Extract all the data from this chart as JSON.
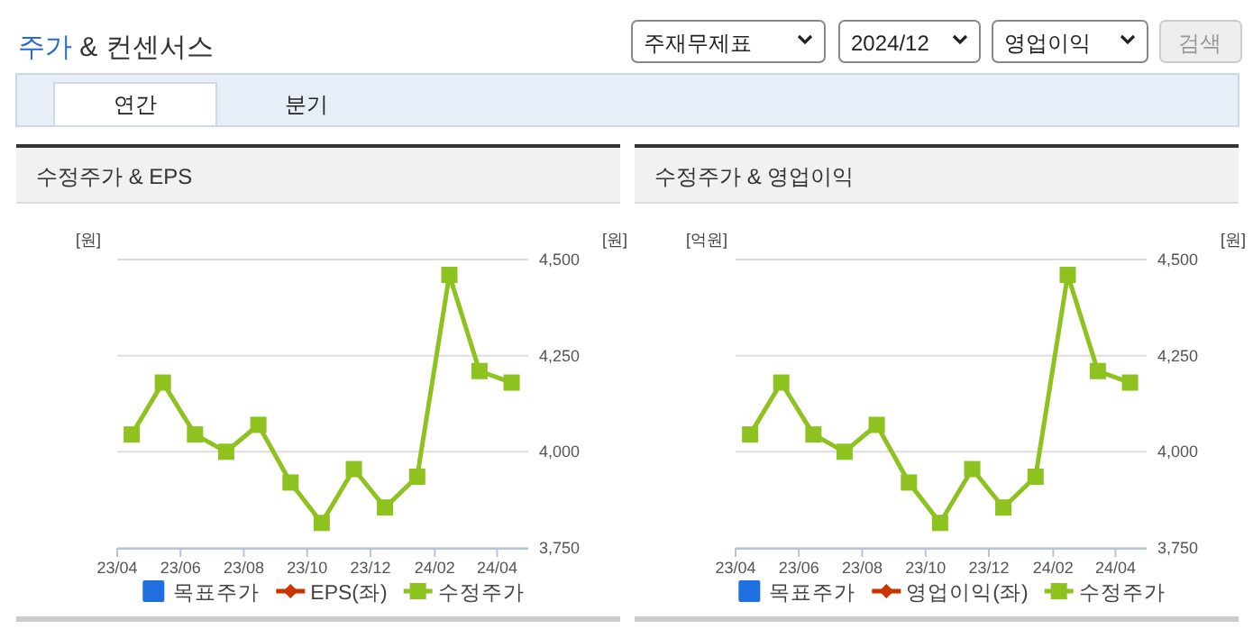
{
  "chart_data": [
    {
      "type": "other",
      "title": "주가 & 컨센서스",
      "annotations": [
        "주재무제표",
        "2024/12",
        "영업이익",
        "검색",
        "연간",
        "분기"
      ]
    },
    {
      "type": "line",
      "title": "수정주가 & EPS",
      "ylabel": "[원]",
      "y2label": "[원]",
      "x": [
        "2023-04-15",
        "2023-05-15",
        "2023-06-15",
        "2023-07-15",
        "2023-08-15",
        "2023-09-15",
        "2023-10-15",
        "2023-11-15",
        "2023-12-15",
        "2024-01-15",
        "2024-02-15",
        "2024-03-15",
        "2024-04-15"
      ],
      "xlim": [
        "2023-04-01",
        "2024-05-01"
      ],
      "xticks": [
        {
          "value": "2023-04-01",
          "label": "23/04"
        },
        {
          "value": "2023-06-01",
          "label": "23/06"
        },
        {
          "value": "2023-08-01",
          "label": "23/08"
        },
        {
          "value": "2023-10-01",
          "label": "23/10"
        },
        {
          "value": "2023-12-01",
          "label": "23/12"
        },
        {
          "value": "2024-02-01",
          "label": "24/02"
        },
        {
          "value": "2024-04-01",
          "label": "24/04"
        }
      ],
      "y2lim": [
        3750,
        4500
      ],
      "y2ticks": [
        {
          "value": 3750,
          "label": "3,750"
        },
        {
          "value": 4000,
          "label": "4,000"
        },
        {
          "value": 4250,
          "label": "4,250"
        },
        {
          "value": 4500,
          "label": "4,500"
        }
      ],
      "grid": "y",
      "legend": "bottom",
      "series": [
        {
          "name": "목표주가",
          "type": "scatter",
          "marker": "square",
          "color": "#1f6fe0",
          "axis": "y2",
          "values": [
            null,
            null,
            null,
            null,
            null,
            null,
            null,
            null,
            null,
            null,
            null,
            null,
            null
          ]
        },
        {
          "name": "EPS(좌)",
          "type": "line",
          "marker": "diamond",
          "color": "#cc3300",
          "axis": "y",
          "values": [
            null,
            null,
            null,
            null,
            null,
            null,
            null,
            null,
            null,
            null,
            null,
            null,
            null
          ]
        },
        {
          "name": "수정주가",
          "type": "line",
          "marker": "square",
          "color": "#8dc21f",
          "axis": "y2",
          "values": [
            4045,
            4180,
            4045,
            4000,
            4070,
            3920,
            3815,
            3955,
            3855,
            3935,
            4460,
            4210,
            4180
          ]
        }
      ]
    },
    {
      "type": "line",
      "title": "수정주가 & 영업이익",
      "ylabel": "[억원]",
      "y2label": "[원]",
      "x": [
        "2023-04-15",
        "2023-05-15",
        "2023-06-15",
        "2023-07-15",
        "2023-08-15",
        "2023-09-15",
        "2023-10-15",
        "2023-11-15",
        "2023-12-15",
        "2024-01-15",
        "2024-02-15",
        "2024-03-15",
        "2024-04-15"
      ],
      "xlim": [
        "2023-04-01",
        "2024-05-01"
      ],
      "xticks": [
        {
          "value": "2023-04-01",
          "label": "23/04"
        },
        {
          "value": "2023-06-01",
          "label": "23/06"
        },
        {
          "value": "2023-08-01",
          "label": "23/08"
        },
        {
          "value": "2023-10-01",
          "label": "23/10"
        },
        {
          "value": "2023-12-01",
          "label": "23/12"
        },
        {
          "value": "2024-02-01",
          "label": "24/02"
        },
        {
          "value": "2024-04-01",
          "label": "24/04"
        }
      ],
      "y2lim": [
        3750,
        4500
      ],
      "y2ticks": [
        {
          "value": 3750,
          "label": "3,750"
        },
        {
          "value": 4000,
          "label": "4,000"
        },
        {
          "value": 4250,
          "label": "4,250"
        },
        {
          "value": 4500,
          "label": "4,500"
        }
      ],
      "grid": "y",
      "legend": "bottom",
      "series": [
        {
          "name": "목표주가",
          "type": "scatter",
          "marker": "square",
          "color": "#1f6fe0",
          "axis": "y2",
          "values": [
            null,
            null,
            null,
            null,
            null,
            null,
            null,
            null,
            null,
            null,
            null,
            null,
            null
          ]
        },
        {
          "name": "영업이익(좌)",
          "type": "line",
          "marker": "diamond",
          "color": "#cc3300",
          "axis": "y",
          "values": [
            null,
            null,
            null,
            null,
            null,
            null,
            null,
            null,
            null,
            null,
            null,
            null,
            null
          ]
        },
        {
          "name": "수정주가",
          "type": "line",
          "marker": "square",
          "color": "#8dc21f",
          "axis": "y2",
          "values": [
            4045,
            4180,
            4045,
            4000,
            4070,
            3920,
            3815,
            3955,
            3855,
            3935,
            4460,
            4210,
            4180
          ]
        }
      ]
    }
  ]
}
